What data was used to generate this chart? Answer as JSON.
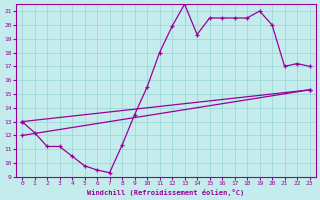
{
  "xlabel": "Windchill (Refroidissement éolien,°C)",
  "xlim": [
    -0.5,
    23.5
  ],
  "ylim": [
    9,
    21.5
  ],
  "xticks": [
    0,
    1,
    2,
    3,
    4,
    5,
    6,
    7,
    8,
    9,
    10,
    11,
    12,
    13,
    14,
    15,
    16,
    17,
    18,
    19,
    20,
    21,
    22,
    23
  ],
  "yticks": [
    9,
    10,
    11,
    12,
    13,
    14,
    15,
    16,
    17,
    18,
    19,
    20,
    21
  ],
  "bg_color": "#c5ecec",
  "grid_color": "#99d5d5",
  "line_color": "#990099",
  "line1_x": [
    0,
    1,
    2,
    3,
    4,
    5,
    6,
    7,
    8,
    9,
    10,
    11,
    12,
    13,
    14,
    15,
    16,
    17,
    18,
    19,
    20,
    21,
    22,
    23
  ],
  "line1_y": [
    13,
    12.2,
    11.2,
    11.2,
    10.5,
    9.8,
    9.5,
    9.3,
    11.3,
    13.5,
    15.5,
    18.0,
    19.9,
    21.5,
    19.3,
    20.5,
    20.5,
    20.5,
    20.5,
    21.0,
    20.0,
    17.0,
    17.2,
    17.0
  ],
  "line2_x": [
    0,
    23
  ],
  "line2_y": [
    13.0,
    15.3
  ],
  "line3_x": [
    0,
    23
  ],
  "line3_y": [
    12.0,
    15.3
  ]
}
